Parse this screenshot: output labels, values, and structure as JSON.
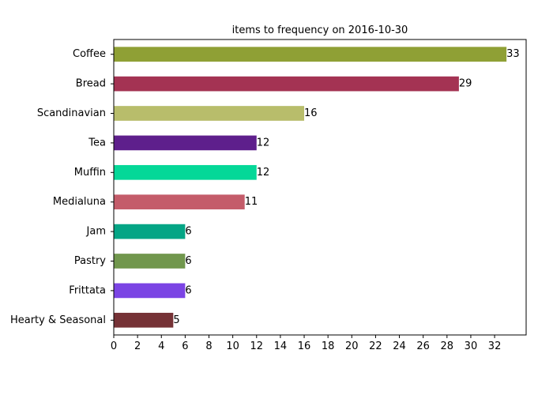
{
  "chart_data": {
    "type": "bar",
    "orientation": "horizontal",
    "title": "items to frequency on 2016-10-30",
    "xlabel": "",
    "ylabel": "",
    "categories": [
      "Coffee",
      "Bread",
      "Scandinavian",
      "Tea",
      "Muffin",
      "Medialuna",
      "Jam",
      "Pastry",
      "Frittata",
      "Hearty & Seasonal"
    ],
    "values": [
      33,
      29,
      16,
      12,
      12,
      11,
      6,
      6,
      6,
      5
    ],
    "colors": [
      "#8fa035",
      "#a43353",
      "#b8bd6b",
      "#5e1f8c",
      "#04d898",
      "#c45c6a",
      "#04a585",
      "#71974d",
      "#7b44e4",
      "#763236"
    ],
    "xlim": [
      0,
      34.65
    ],
    "xticks": [
      "0",
      "2",
      "4",
      "6",
      "8",
      "10",
      "12",
      "14",
      "16",
      "18",
      "20",
      "22",
      "24",
      "26",
      "28",
      "30",
      "32"
    ],
    "grid": false,
    "legend": "none"
  }
}
